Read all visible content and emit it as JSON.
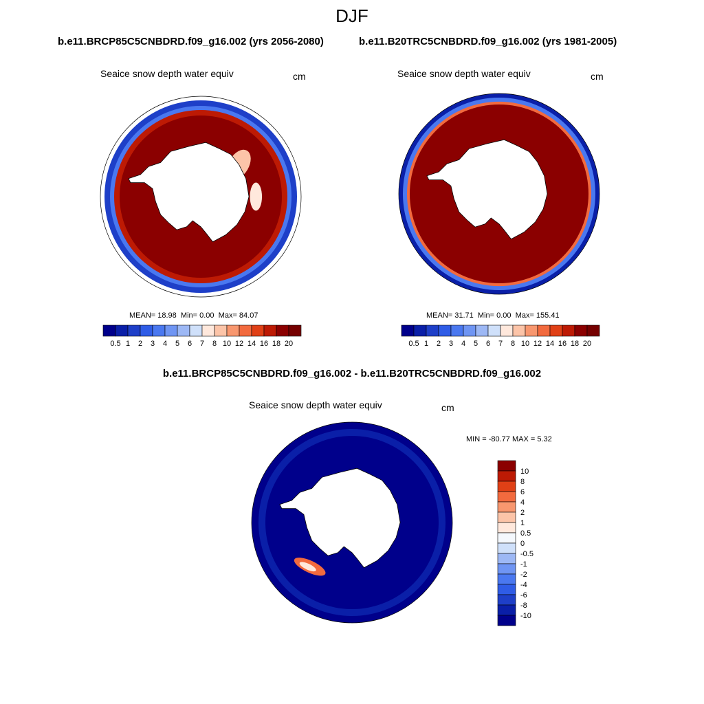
{
  "figure": {
    "season": "DJF",
    "case1_title": "b.e11.BRCP85C5CNBDRD.f09_g16.002 (yrs 2056-2080)",
    "case2_title": "b.e11.B20TRC5CNBDRD.f09_g16.002 (yrs 1981-2005)",
    "diff_title": "b.e11.BRCP85C5CNBDRD.f09_g16.002 - b.e11.B20TRC5CNBDRD.f09_g16.002"
  },
  "panels": [
    {
      "id": "case1",
      "title": "Seaice snow depth water equiv",
      "units": "cm",
      "stats": {
        "mean": "MEAN=  18.98",
        "min": "Min=   0.00",
        "max": "Max=  84.07"
      }
    },
    {
      "id": "case2",
      "title": "Seaice snow depth water equiv",
      "units": "cm",
      "stats": {
        "mean": "MEAN=  31.71",
        "min": "Min=   0.00",
        "max": "Max= 155.41"
      }
    },
    {
      "id": "difference",
      "title": "Seaice snow depth water equiv",
      "units": "cm",
      "stats_text": "MIN = -80.77 MAX =   5.32"
    }
  ],
  "chart_data": [
    {
      "type": "heatmap",
      "title": "Seaice snow depth water equiv",
      "projection": "south-polar-stereographic",
      "units": "cm",
      "colorbar": {
        "orientation": "horizontal",
        "levels": [
          "0.5",
          "1",
          "2",
          "3",
          "4",
          "5",
          "6",
          "7",
          "8",
          "10",
          "12",
          "14",
          "16",
          "18",
          "20"
        ],
        "colors": [
          "#00008B",
          "#0A1FA8",
          "#1E3FC8",
          "#2F5CE6",
          "#4A78F0",
          "#6F95F3",
          "#9DB8F5",
          "#CFE0FA",
          "#FFE8DC",
          "#FCC4A8",
          "#F8976F",
          "#F26A3E",
          "#E04016",
          "#BD1A04",
          "#8B0000",
          "#750000"
        ]
      },
      "stats": {
        "mean": 18.98,
        "min": 0.0,
        "max": 84.07
      }
    },
    {
      "type": "heatmap",
      "title": "Seaice snow depth water equiv",
      "projection": "south-polar-stereographic",
      "units": "cm",
      "colorbar": {
        "orientation": "horizontal",
        "levels": [
          "0.5",
          "1",
          "2",
          "3",
          "4",
          "5",
          "6",
          "7",
          "8",
          "10",
          "12",
          "14",
          "16",
          "18",
          "20"
        ],
        "colors": [
          "#00008B",
          "#0A1FA8",
          "#1E3FC8",
          "#2F5CE6",
          "#4A78F0",
          "#6F95F3",
          "#9DB8F5",
          "#CFE0FA",
          "#FFE8DC",
          "#FCC4A8",
          "#F8976F",
          "#F26A3E",
          "#E04016",
          "#BD1A04",
          "#8B0000",
          "#750000"
        ]
      },
      "stats": {
        "mean": 31.71,
        "min": 0.0,
        "max": 155.41
      }
    },
    {
      "type": "heatmap",
      "title": "Seaice snow depth water equiv",
      "projection": "south-polar-stereographic",
      "units": "cm",
      "colorbar": {
        "orientation": "vertical",
        "levels": [
          "10",
          "8",
          "6",
          "4",
          "2",
          "1",
          "0.5",
          "0",
          "-0.5",
          "-1",
          "-2",
          "-4",
          "-6",
          "-8",
          "-10"
        ],
        "colors": [
          "#8B0000",
          "#BD1A04",
          "#E04016",
          "#F26A3E",
          "#F8976F",
          "#FCC4A8",
          "#FFE8DC",
          "#F4F8FD",
          "#CFE0FA",
          "#9DB8F5",
          "#6F95F3",
          "#4A78F0",
          "#2F5CE6",
          "#1E3FC8",
          "#0A1FA8",
          "#00008B"
        ]
      },
      "stats": {
        "min": -80.77,
        "max": 5.32
      }
    }
  ]
}
